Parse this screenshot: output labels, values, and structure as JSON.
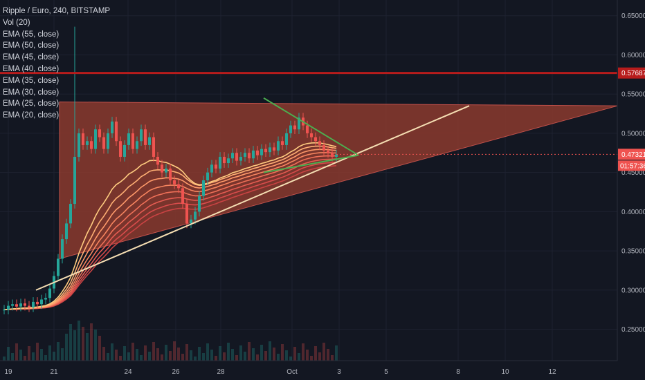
{
  "legend": {
    "title": "Ripple / Euro, 240, BITSTAMP",
    "indicators": [
      "Vol (20)",
      "EMA (55, close)",
      "EMA (50, close)",
      "EMA (45, close)",
      "EMA (40, close)",
      "EMA (35, close)",
      "EMA (30, close)",
      "EMA (25, close)",
      "EMA (20, close)"
    ]
  },
  "colors": {
    "background": "#131722",
    "up": "#26a69a",
    "down": "#ef5350",
    "triangle_fill": "#8b3a2e",
    "resistance": "#b71c1c",
    "trendline": "#f5deb3",
    "wedge": "#4caf50",
    "ema_palette": [
      "#ffcc80",
      "#ffb074",
      "#ff9a6a",
      "#f7855f",
      "#ef7058",
      "#e55c52",
      "#d94c4c",
      "#c94343"
    ]
  },
  "axis": {
    "y_ticks": [
      "0.65000",
      "0.60000",
      "0.55000",
      "0.50000",
      "0.45000",
      "0.40000",
      "0.35000",
      "0.30000",
      "0.25000"
    ],
    "x_ticks": [
      "19",
      "21",
      "24",
      "26",
      "28",
      "Oct",
      "3",
      "5",
      "8",
      "10",
      "12"
    ],
    "price_badge": "0.47321",
    "countdown_badge": "01:57:36",
    "resistance_badge": "0.57687"
  },
  "chart_data": {
    "type": "candlestick",
    "symbol": "XRP/EUR",
    "timeframe": "240",
    "exchange": "BITSTAMP",
    "ylim": [
      0.21,
      0.67
    ],
    "y_ticks": [
      0.65,
      0.6,
      0.55,
      0.5,
      0.45,
      0.4,
      0.35,
      0.3,
      0.25
    ],
    "last_price": 0.47321,
    "resistance_level": 0.57687,
    "closes": [
      0.275,
      0.28,
      0.282,
      0.279,
      0.283,
      0.28,
      0.278,
      0.285,
      0.282,
      0.288,
      0.29,
      0.302,
      0.318,
      0.34,
      0.365,
      0.385,
      0.41,
      0.47,
      0.5,
      0.485,
      0.49,
      0.48,
      0.505,
      0.495,
      0.48,
      0.5,
      0.515,
      0.49,
      0.47,
      0.485,
      0.5,
      0.48,
      0.49,
      0.505,
      0.485,
      0.495,
      0.47,
      0.46,
      0.45,
      0.455,
      0.44,
      0.435,
      0.43,
      0.41,
      0.385,
      0.39,
      0.4,
      0.42,
      0.44,
      0.45,
      0.46,
      0.455,
      0.47,
      0.462,
      0.468,
      0.475,
      0.465,
      0.47,
      0.475,
      0.468,
      0.478,
      0.472,
      0.48,
      0.476,
      0.482,
      0.478,
      0.49,
      0.485,
      0.5,
      0.51,
      0.505,
      0.52,
      0.51,
      0.5,
      0.495,
      0.49,
      0.485,
      0.478,
      0.475,
      0.47,
      0.473
    ],
    "ema_periods": [
      20,
      25,
      30,
      35,
      40,
      45,
      50,
      55
    ],
    "triangle": [
      [
        0.54,
        0.34
      ],
      [
        0.535,
        0.448
      ]
    ],
    "trendline": [
      0.3,
      0.535
    ],
    "wedge_upper": [
      0.545,
      0.472
    ],
    "wedge_lower": [
      0.45,
      0.472
    ]
  }
}
